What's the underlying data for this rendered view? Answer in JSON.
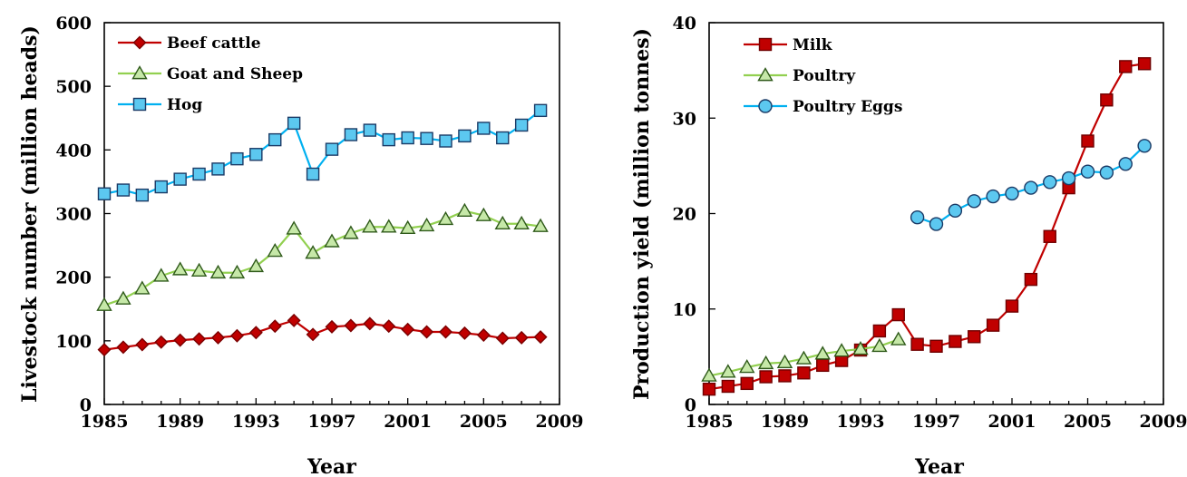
{
  "chart_data": [
    {
      "type": "line",
      "xlabel": "Year",
      "ylabel": "Livestock number (million heads)",
      "xlim": [
        1985,
        2009
      ],
      "ylim": [
        0,
        600
      ],
      "xticks": [
        "1985",
        "1989",
        "1993",
        "1997",
        "2001",
        "2005",
        "2009"
      ],
      "yticks": [
        "0",
        "100",
        "200",
        "300",
        "400",
        "500",
        "600"
      ],
      "grid": false,
      "legend_position": "top-left",
      "series": [
        {
          "name": "Beef cattle",
          "marker": "diamond",
          "color": "#C00000",
          "fill": "#C00000",
          "x": [
            1985,
            1986,
            1987,
            1988,
            1989,
            1990,
            1991,
            1992,
            1993,
            1994,
            1995,
            1996,
            1997,
            1998,
            1999,
            2000,
            2001,
            2002,
            2003,
            2004,
            2005,
            2006,
            2007,
            2008
          ],
          "values": [
            86,
            90,
            94,
            98,
            101,
            103,
            105,
            108,
            113,
            123,
            132,
            110,
            122,
            124,
            127,
            123,
            118,
            114,
            114,
            112,
            109,
            104,
            105,
            106
          ]
        },
        {
          "name": "Goat and Sheep",
          "marker": "triangle",
          "color": "#92D050",
          "fill": "#C6E8A8",
          "x": [
            1985,
            1986,
            1987,
            1988,
            1989,
            1990,
            1991,
            1992,
            1993,
            1994,
            1995,
            1996,
            1997,
            1998,
            1999,
            2000,
            2001,
            2002,
            2003,
            2004,
            2005,
            2006,
            2007,
            2008
          ],
          "values": [
            156,
            166,
            182,
            202,
            212,
            210,
            207,
            207,
            217,
            241,
            276,
            238,
            256,
            269,
            279,
            279,
            277,
            281,
            291,
            304,
            297,
            284,
            284,
            280
          ]
        },
        {
          "name": "Hog",
          "marker": "square",
          "color": "#00B0F0",
          "fill": "#5CC8F0",
          "x": [
            1985,
            1986,
            1987,
            1988,
            1989,
            1990,
            1991,
            1992,
            1993,
            1994,
            1995,
            1996,
            1997,
            1998,
            1999,
            2000,
            2001,
            2002,
            2003,
            2004,
            2005,
            2006,
            2007,
            2008
          ],
          "values": [
            331,
            337,
            329,
            342,
            354,
            362,
            370,
            386,
            393,
            416,
            442,
            362,
            401,
            424,
            431,
            416,
            419,
            418,
            414,
            422,
            434,
            419,
            439,
            462
          ]
        }
      ]
    },
    {
      "type": "line",
      "xlabel": "Year",
      "ylabel": "Production yield (million tonnes)",
      "xlim": [
        1985,
        2009
      ],
      "ylim": [
        0,
        40
      ],
      "xticks": [
        "1985",
        "1989",
        "1993",
        "1997",
        "2001",
        "2005",
        "2009"
      ],
      "yticks": [
        "0",
        "10",
        "20",
        "30",
        "40"
      ],
      "grid": false,
      "legend_position": "top-left",
      "series": [
        {
          "name": "Milk",
          "marker": "square",
          "color": "#C00000",
          "fill": "#C00000",
          "x": [
            1985,
            1986,
            1987,
            1988,
            1989,
            1990,
            1991,
            1992,
            1993,
            1994,
            1995,
            1996,
            1997,
            1998,
            1999,
            2000,
            2001,
            2002,
            2003,
            2004,
            2005,
            2006,
            2007,
            2008
          ],
          "values": [
            1.6,
            1.9,
            2.2,
            2.9,
            3.0,
            3.3,
            4.1,
            4.6,
            5.7,
            7.7,
            9.4,
            6.3,
            6.1,
            6.6,
            7.1,
            8.3,
            10.3,
            13.1,
            17.6,
            22.7,
            27.6,
            31.9,
            35.4,
            35.7
          ]
        },
        {
          "name": "Poultry",
          "marker": "triangle",
          "color": "#92D050",
          "fill": "#C6E8A8",
          "x": [
            1985,
            1986,
            1987,
            1988,
            1989,
            1990,
            1991,
            1992,
            1993,
            1994,
            1995
          ],
          "values": [
            3.0,
            3.4,
            3.9,
            4.3,
            4.4,
            4.8,
            5.3,
            5.6,
            5.8,
            6.1,
            6.8
          ]
        },
        {
          "name": "Poultry Eggs",
          "marker": "circle",
          "color": "#00B0F0",
          "fill": "#5CC8F0",
          "x": [
            1996,
            1997,
            1998,
            1999,
            2000,
            2001,
            2002,
            2003,
            2004,
            2005,
            2006,
            2007,
            2008
          ],
          "values": [
            19.6,
            18.9,
            20.3,
            21.3,
            21.8,
            22.1,
            22.7,
            23.3,
            23.7,
            24.4,
            24.3,
            25.2,
            27.1
          ]
        }
      ]
    }
  ]
}
